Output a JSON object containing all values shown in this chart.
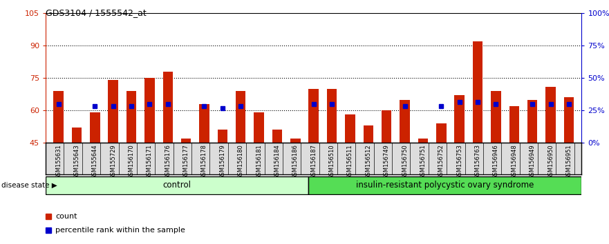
{
  "title": "GDS3104 / 1555542_at",
  "samples": [
    "GSM155631",
    "GSM155643",
    "GSM155644",
    "GSM155729",
    "GSM156170",
    "GSM156171",
    "GSM156176",
    "GSM156177",
    "GSM156178",
    "GSM156179",
    "GSM156180",
    "GSM156181",
    "GSM156184",
    "GSM156186",
    "GSM156187",
    "GSM156510",
    "GSM156511",
    "GSM156512",
    "GSM156749",
    "GSM156750",
    "GSM156751",
    "GSM156752",
    "GSM156753",
    "GSM156763",
    "GSM156946",
    "GSM156948",
    "GSM156949",
    "GSM156950",
    "GSM156951"
  ],
  "bar_values": [
    69,
    52,
    59,
    74,
    69,
    75,
    78,
    47,
    63,
    51,
    69,
    59,
    51,
    47,
    70,
    70,
    58,
    53,
    60,
    65,
    47,
    54,
    67,
    92,
    69,
    62,
    65,
    71,
    66
  ],
  "dot_y_values": [
    63,
    null,
    62,
    62,
    62,
    63,
    63,
    null,
    62,
    61,
    62,
    null,
    null,
    null,
    63,
    63,
    null,
    null,
    null,
    62,
    null,
    62,
    64,
    64,
    63,
    null,
    63,
    63,
    63
  ],
  "control_count": 14,
  "ylim_left": [
    45,
    105
  ],
  "ylim_right": [
    0,
    100
  ],
  "yticks_left": [
    45,
    60,
    75,
    90,
    105
  ],
  "yticks_right": [
    0,
    25,
    50,
    75,
    100
  ],
  "ytick_labels_right": [
    "0%",
    "25%",
    "50%",
    "75%",
    "100%"
  ],
  "grid_lines": [
    60,
    75,
    90
  ],
  "bar_color": "#CC2200",
  "dot_color": "#0000CC",
  "bar_baseline": 45,
  "control_label": "control",
  "disease_label": "insulin-resistant polycystic ovary syndrome",
  "disease_state_label": "disease state",
  "legend_count_label": "count",
  "legend_percentile_label": "percentile rank within the sample",
  "control_bg": "#CCFFCC",
  "disease_bg": "#55DD55",
  "plot_bg": "#FFFFFF",
  "tick_area_bg": "#DDDDDD",
  "left_axis_color": "#CC2200",
  "right_axis_color": "#0000CC"
}
